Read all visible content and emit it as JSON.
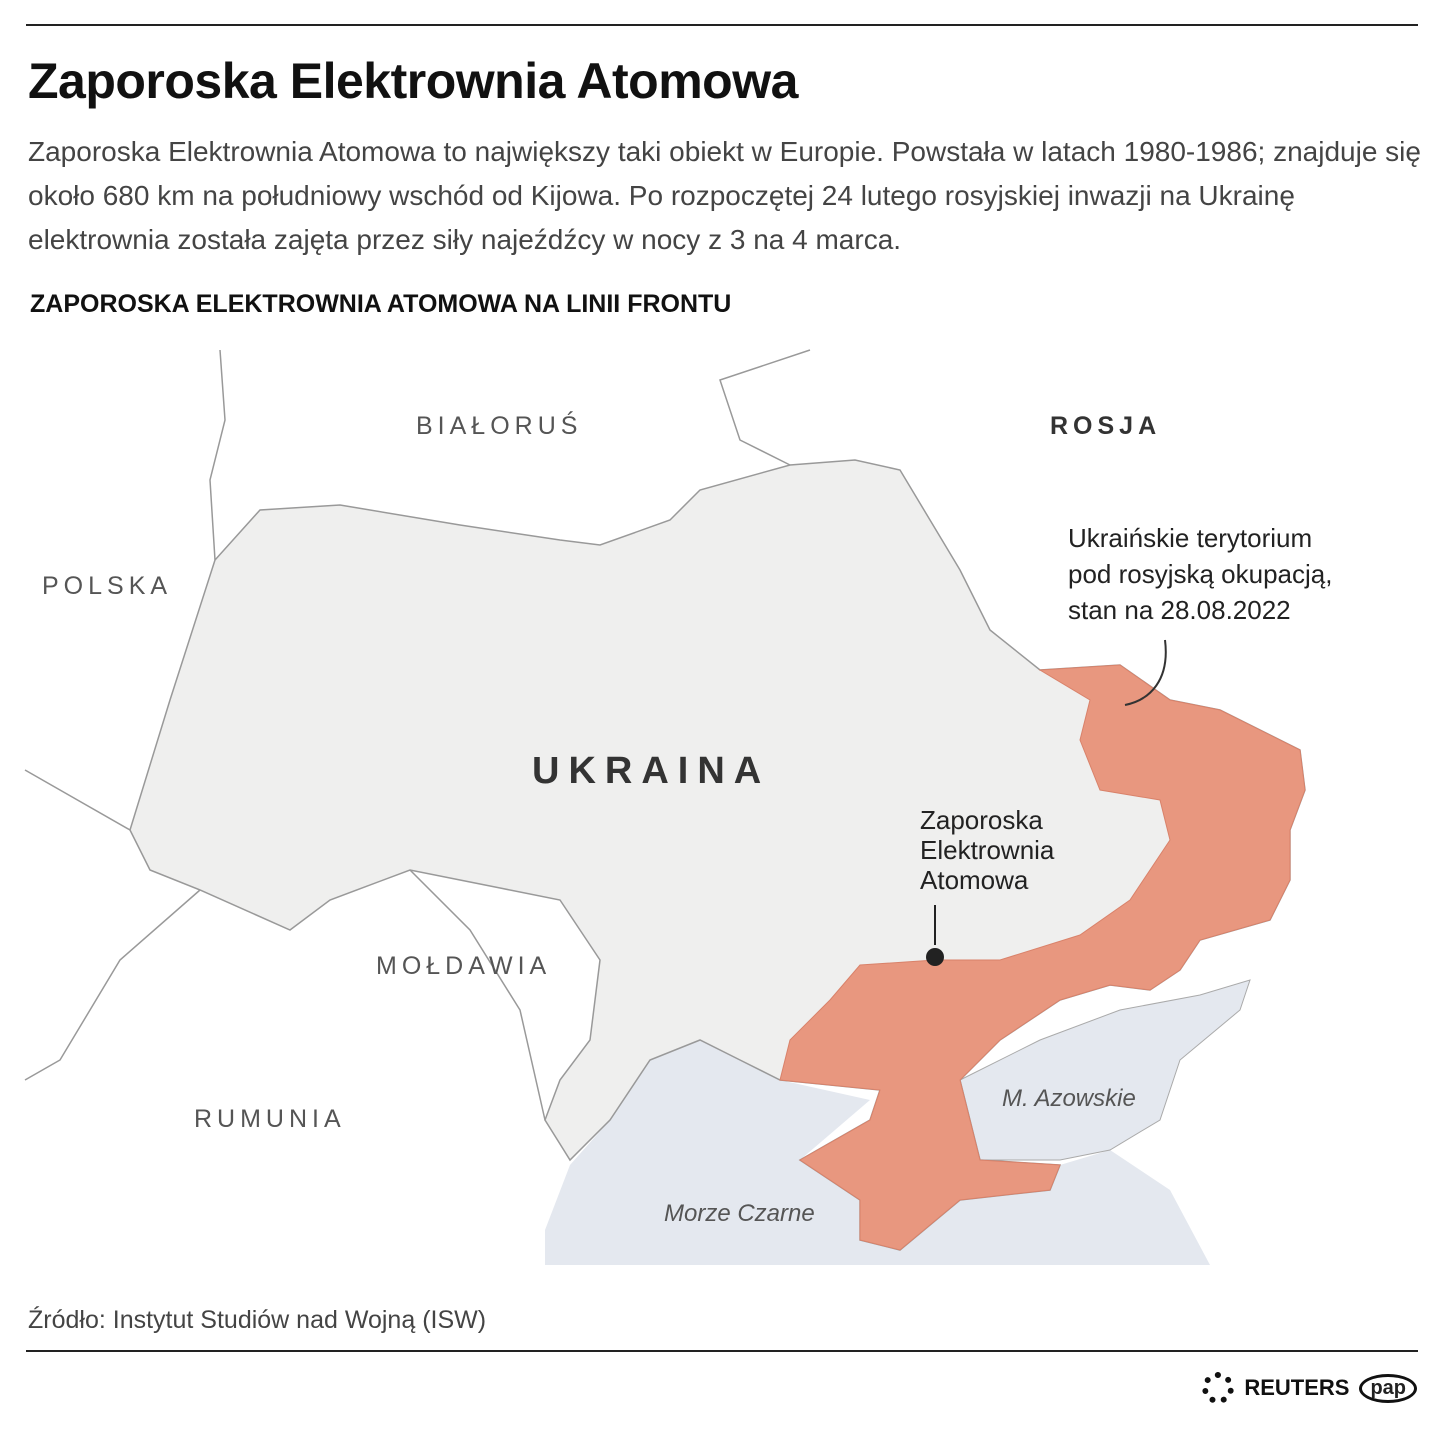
{
  "title": "Zaporoska Elektrownia Atomowa",
  "lead": "Zaporoska Elektrownia Atomowa to największy taki obiekt w Europie. Powstała w latach 1980-1986; znajduje się około 680 km na południowy wschód od Kijowa. Po rozpoczętej 24 lutego rosyjskiej inwazji na Ukrainę elektrownia została zajęta przez siły najeźdźcy w nocy z 3 na 4 marca.",
  "subhead": "ZAPOROSKA ELEKTROWNIA ATOMOWA NA LINII FRONTU",
  "map": {
    "countries": {
      "belarus": "BIAŁORUŚ",
      "russia": "ROSJA",
      "poland": "POLSKA",
      "ukraine": "UKRAINA",
      "moldova": "MOŁDAWIA",
      "romania": "RUMUNIA"
    },
    "seas": {
      "azov": "M. Azowskie",
      "black": "Morze Czarne"
    },
    "plant_label": [
      "Zaporoska",
      "Elektrownia",
      "Atomowa"
    ],
    "occupied_label": [
      "Ukraińskie terytorium",
      "pod rosyjską okupacją,",
      "stan na 28.08.2022"
    ],
    "colors": {
      "land": "#efefee",
      "occupied": "#e8977f",
      "sea": "#e4e8ef",
      "border": "#999999"
    }
  },
  "source": "Źródło: Instytut Studiów nad Wojną (ISW)",
  "logos": {
    "reuters": "REUTERS",
    "pap": "pap"
  }
}
